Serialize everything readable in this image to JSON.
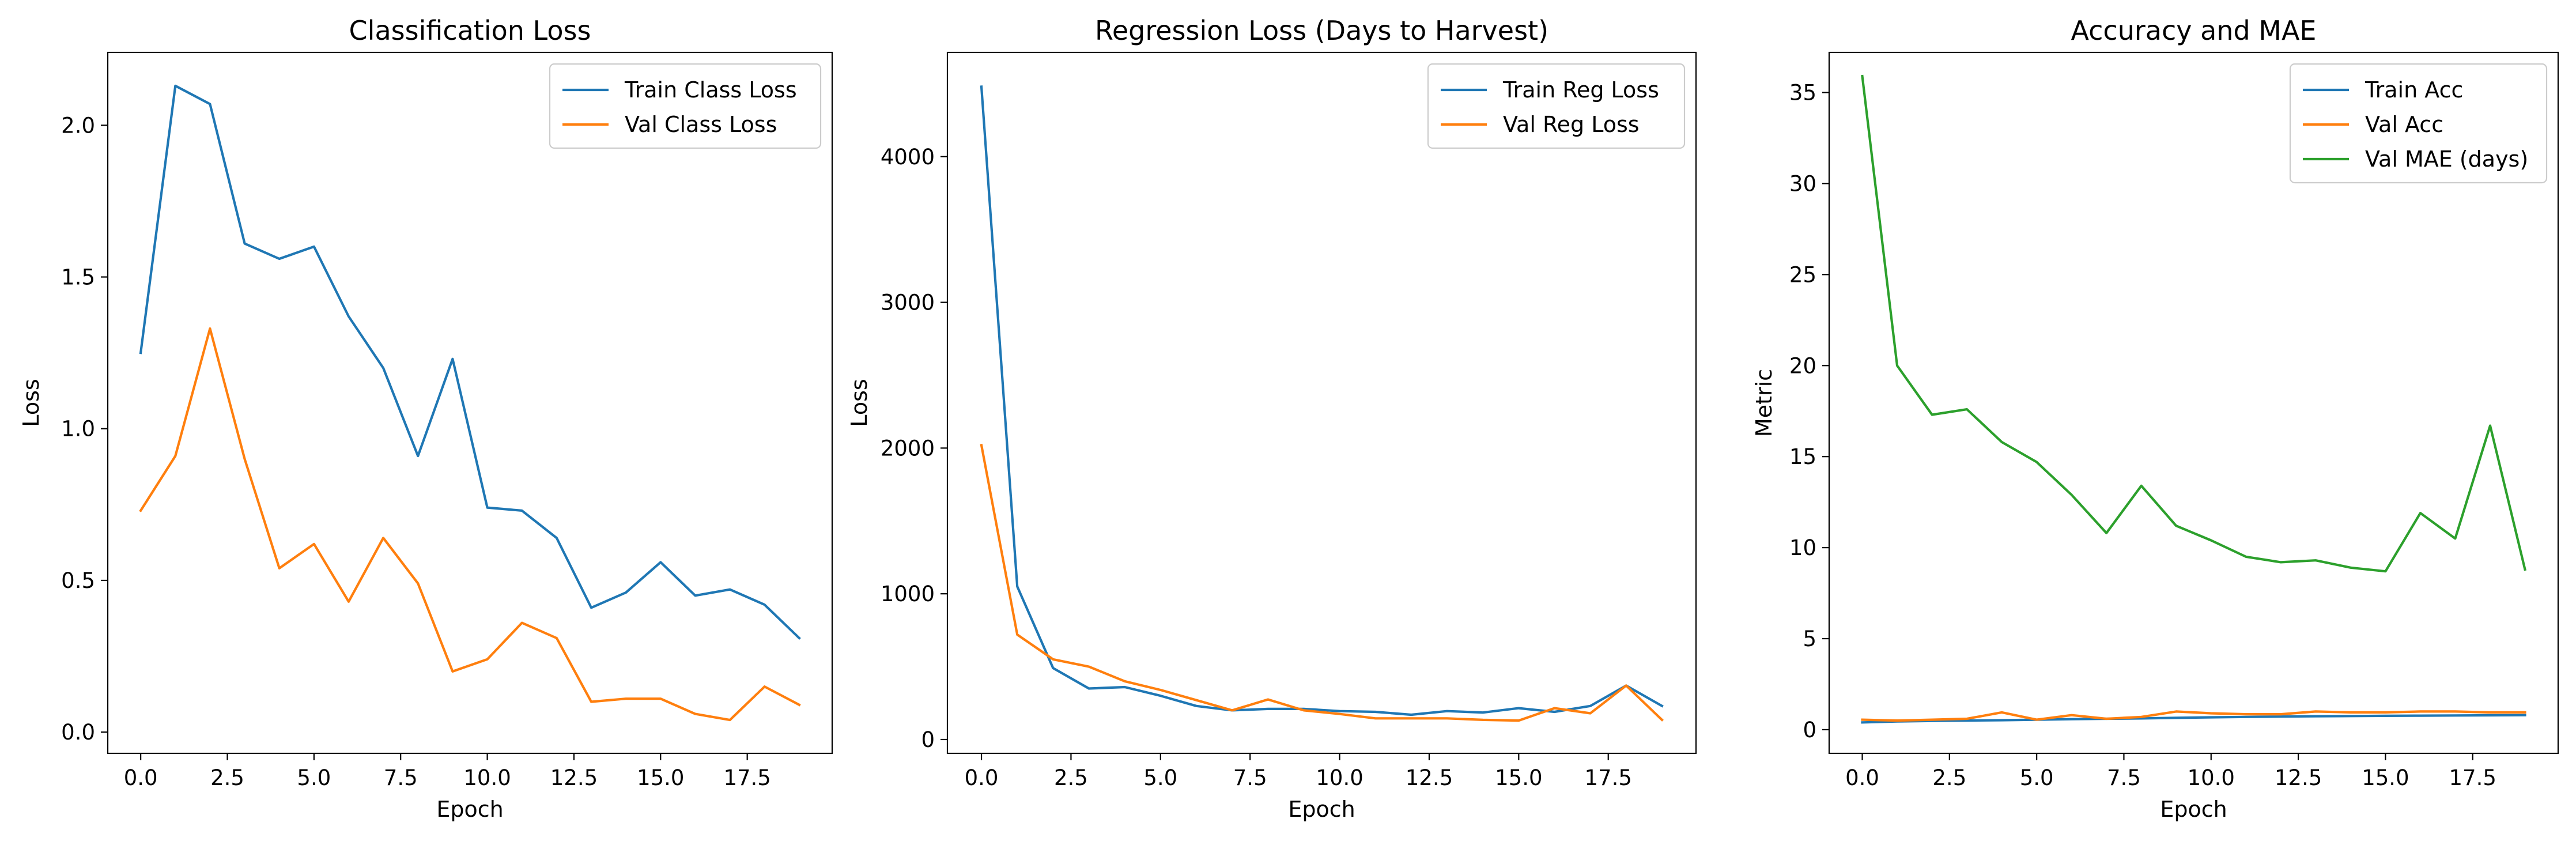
{
  "chart_data": [
    {
      "type": "line",
      "title": "Classification Loss",
      "xlabel": "Epoch",
      "ylabel": "Loss",
      "xlim": [
        -0.95,
        19.95
      ],
      "ylim": [
        -0.07,
        2.24
      ],
      "xticks": [
        0,
        2.5,
        5,
        7.5,
        10,
        12.5,
        15,
        17.5
      ],
      "xtick_labels": [
        "0.0",
        "2.5",
        "5.0",
        "7.5",
        "10.0",
        "12.5",
        "15.0",
        "17.5"
      ],
      "yticks": [
        0,
        0.5,
        1.0,
        1.5,
        2.0
      ],
      "ytick_labels": [
        "0.0",
        "0.5",
        "1.0",
        "1.5",
        "2.0"
      ],
      "grid": false,
      "legend": "top-right",
      "x": [
        0,
        1,
        2,
        3,
        4,
        5,
        6,
        7,
        8,
        9,
        10,
        11,
        12,
        13,
        14,
        15,
        16,
        17,
        18,
        19
      ],
      "series": [
        {
          "name": "Train Class Loss",
          "color": "#1f77b4",
          "values": [
            1.25,
            2.13,
            2.07,
            1.61,
            1.56,
            1.6,
            1.37,
            1.2,
            0.91,
            1.23,
            0.74,
            0.73,
            0.64,
            0.41,
            0.46,
            0.56,
            0.45,
            0.47,
            0.42,
            0.31
          ]
        },
        {
          "name": "Val Class Loss",
          "color": "#ff7f0e",
          "values": [
            0.73,
            0.91,
            1.33,
            0.9,
            0.54,
            0.62,
            0.43,
            0.64,
            0.49,
            0.2,
            0.24,
            0.36,
            0.31,
            0.1,
            0.11,
            0.11,
            0.06,
            0.04,
            0.15,
            0.09
          ]
        }
      ]
    },
    {
      "type": "line",
      "title": "Regression Loss (Days to Harvest)",
      "xlabel": "Epoch",
      "ylabel": "Loss",
      "xlim": [
        -0.95,
        19.95
      ],
      "ylim": [
        -95,
        4715
      ],
      "xticks": [
        0,
        2.5,
        5,
        7.5,
        10,
        12.5,
        15,
        17.5
      ],
      "xtick_labels": [
        "0.0",
        "2.5",
        "5.0",
        "7.5",
        "10.0",
        "12.5",
        "15.0",
        "17.5"
      ],
      "yticks": [
        0,
        1000,
        2000,
        3000,
        4000
      ],
      "ytick_labels": [
        "0",
        "1000",
        "2000",
        "3000",
        "4000"
      ],
      "grid": false,
      "legend": "top-right",
      "x": [
        0,
        1,
        2,
        3,
        4,
        5,
        6,
        7,
        8,
        9,
        10,
        11,
        12,
        13,
        14,
        15,
        16,
        17,
        18,
        19
      ],
      "series": [
        {
          "name": "Train Reg Loss",
          "color": "#1f77b4",
          "values": [
            4480,
            1050,
            490,
            350,
            360,
            300,
            230,
            200,
            210,
            210,
            195,
            190,
            170,
            195,
            185,
            215,
            190,
            230,
            370,
            230
          ]
        },
        {
          "name": "Val Reg Loss",
          "color": "#ff7f0e",
          "values": [
            2020,
            720,
            550,
            500,
            400,
            340,
            270,
            200,
            275,
            200,
            175,
            145,
            145,
            145,
            135,
            130,
            215,
            180,
            370,
            135
          ]
        }
      ]
    },
    {
      "type": "line",
      "title": "Accuracy and MAE",
      "xlabel": "Epoch",
      "ylabel": "Metric",
      "xlim": [
        -0.95,
        19.95
      ],
      "ylim": [
        -1.3,
        37.2
      ],
      "xticks": [
        0,
        2.5,
        5,
        7.5,
        10,
        12.5,
        15,
        17.5
      ],
      "xtick_labels": [
        "0.0",
        "2.5",
        "5.0",
        "7.5",
        "10.0",
        "12.5",
        "15.0",
        "17.5"
      ],
      "yticks": [
        0,
        5,
        10,
        15,
        20,
        25,
        30,
        35
      ],
      "ytick_labels": [
        "0",
        "5",
        "10",
        "15",
        "20",
        "25",
        "30",
        "35"
      ],
      "grid": false,
      "legend": "top-right",
      "x": [
        0,
        1,
        2,
        3,
        4,
        5,
        6,
        7,
        8,
        9,
        10,
        11,
        12,
        13,
        14,
        15,
        16,
        17,
        18,
        19
      ],
      "series": [
        {
          "name": "Train Acc",
          "color": "#1f77b4",
          "values": [
            0.4,
            0.45,
            0.48,
            0.5,
            0.52,
            0.55,
            0.58,
            0.6,
            0.62,
            0.65,
            0.68,
            0.7,
            0.72,
            0.74,
            0.75,
            0.76,
            0.77,
            0.78,
            0.79,
            0.8
          ]
        },
        {
          "name": "Val Acc",
          "color": "#ff7f0e",
          "values": [
            0.55,
            0.5,
            0.55,
            0.6,
            0.95,
            0.55,
            0.8,
            0.6,
            0.7,
            1.0,
            0.9,
            0.85,
            0.85,
            1.0,
            0.95,
            0.95,
            1.0,
            1.0,
            0.95,
            0.95
          ]
        },
        {
          "name": "Val MAE (days)",
          "color": "#2ca02c",
          "values": [
            35.9,
            20.0,
            17.3,
            17.6,
            15.8,
            14.7,
            12.9,
            10.8,
            13.4,
            11.2,
            10.4,
            9.5,
            9.2,
            9.3,
            8.9,
            8.7,
            11.9,
            10.5,
            16.7,
            8.8
          ]
        }
      ]
    }
  ]
}
